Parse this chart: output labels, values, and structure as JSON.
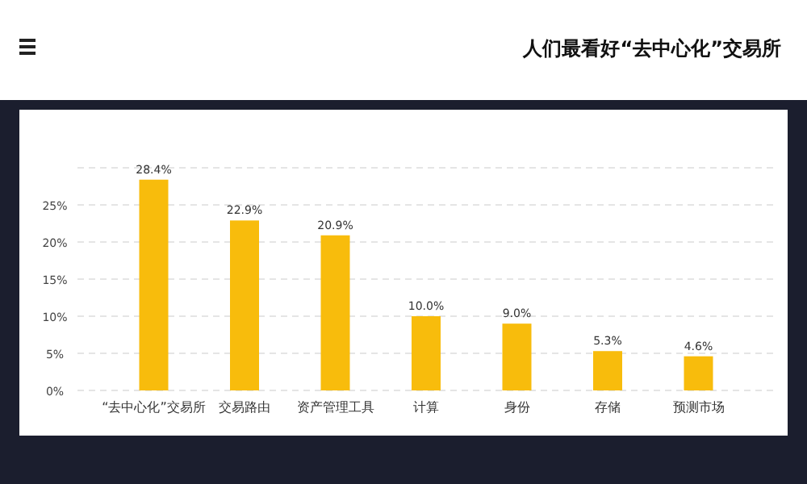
{
  "chart_data": {
    "type": "bar",
    "title": "人们最看好“去中心化”交易所",
    "categories": [
      "“去中心化”交易所",
      "交易路由",
      "资产管理工具",
      "计算",
      "身份",
      "存储",
      "预测市场"
    ],
    "values": [
      28.4,
      22.9,
      20.9,
      10.0,
      9.0,
      5.3,
      4.6
    ],
    "color": "#f8bc0c",
    "ylim": [
      0,
      30
    ],
    "yticks": [
      {
        "value": 0,
        "label": "0%"
      },
      {
        "value": 5,
        "label": "5%"
      },
      {
        "value": 10,
        "label": "10%"
      },
      {
        "value": 15,
        "label": "15%"
      },
      {
        "value": 20,
        "label": "20%"
      },
      {
        "value": 25,
        "label": "25%"
      },
      {
        "value": 30,
        "label": null
      }
    ],
    "value_labels": [
      "28.4%",
      "22.9%",
      "20.9%",
      "10.0%",
      "9.0%",
      "5.3%",
      "4.6%"
    ],
    "grid": "y"
  }
}
